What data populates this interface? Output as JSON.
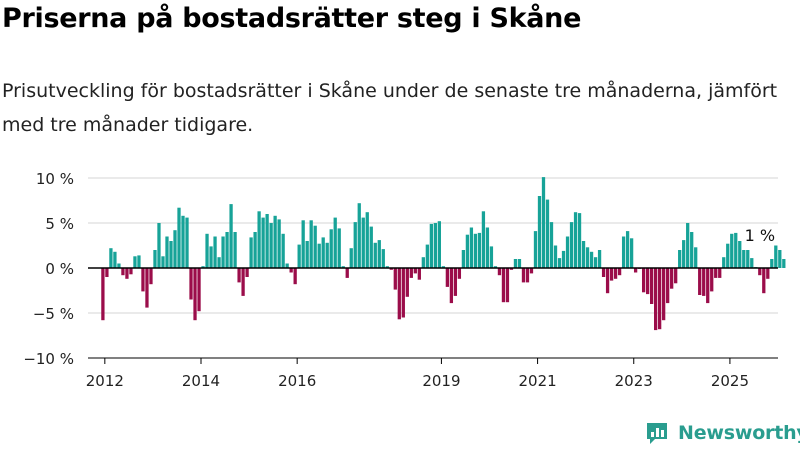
{
  "title": "Priserna på bostadsrätter steg i Skåne",
  "subtitle": "Prisutveckling för bostadsrätter i Skåne under de senaste tre månaderna, jämfört med tre månader tidigare.",
  "brand": {
    "name": "Newsworthy",
    "color": "#2a9d8f",
    "icon": "newsworthy-chart-icon"
  },
  "colors": {
    "positive": "#17a398",
    "negative": "#9b0d4a",
    "grid": "#d6d6d6",
    "axis": "#000000",
    "text": "#222222"
  },
  "chart_data": {
    "type": "bar",
    "unit": "%",
    "ylim": [
      -10,
      10
    ],
    "yticks": [
      10,
      5,
      0,
      -5,
      -10
    ],
    "ytick_labels": [
      "10 %",
      "5 %",
      "0 %",
      "−5 %",
      "−10 %"
    ],
    "grid": true,
    "xlim": [
      2011.65,
      2026.0
    ],
    "xticks": [
      2012,
      2014,
      2016,
      2019,
      2021,
      2023,
      2025
    ],
    "xtick_labels": [
      "2012",
      "2014",
      "2016",
      "2019",
      "2021",
      "2023",
      "2025"
    ],
    "annotation": {
      "text": "1 %",
      "x": 2025.58,
      "y": 1
    },
    "x_start": 2011.96,
    "x_step": 0.0833,
    "values": [
      -5.8,
      -1.0,
      2.2,
      1.8,
      0.5,
      -0.8,
      -1.2,
      -0.7,
      1.3,
      1.4,
      -2.6,
      -4.4,
      -1.8,
      2.0,
      5.0,
      1.3,
      3.5,
      3.0,
      4.2,
      6.7,
      5.8,
      5.6,
      -3.5,
      -5.8,
      -4.8,
      0.2,
      3.8,
      2.4,
      3.5,
      1.2,
      3.5,
      4.0,
      7.1,
      4.0,
      -1.6,
      -3.1,
      -1.0,
      3.4,
      4.0,
      6.3,
      5.6,
      6.0,
      5.0,
      5.8,
      5.4,
      3.8,
      0.5,
      -0.5,
      -1.8,
      2.6,
      5.3,
      3.0,
      5.3,
      4.7,
      2.7,
      3.4,
      2.8,
      4.3,
      5.6,
      4.4,
      0.2,
      -1.1,
      2.2,
      5.1,
      7.2,
      5.6,
      6.2,
      4.6,
      2.8,
      3.1,
      2.1,
      0.2,
      -0.2,
      -2.4,
      -5.7,
      -5.5,
      -3.2,
      -1.1,
      -0.6,
      -1.3,
      1.2,
      2.6,
      4.9,
      5.0,
      5.2,
      0.2,
      -2.1,
      -3.9,
      -3.1,
      -1.2,
      2.0,
      3.7,
      4.5,
      3.8,
      3.9,
      6.3,
      4.5,
      2.4,
      0.2,
      -0.8,
      -3.8,
      -3.8,
      -0.2,
      1.0,
      1.0,
      -1.6,
      -1.6,
      -0.6,
      4.1,
      8.0,
      10.1,
      7.6,
      5.1,
      2.5,
      1.1,
      1.9,
      3.5,
      5.1,
      6.2,
      6.1,
      3.0,
      2.3,
      1.8,
      1.2,
      2.0,
      -1.0,
      -2.8,
      -1.4,
      -1.2,
      -0.8,
      3.5,
      4.1,
      3.3,
      -0.5,
      -0.1,
      -2.7,
      -2.9,
      -4.0,
      -6.9,
      -6.8,
      -5.8,
      -3.9,
      -2.3,
      -1.7,
      2.0,
      3.1,
      5.0,
      4.0,
      2.3,
      -3.0,
      -3.1,
      -3.9,
      -2.6,
      -1.1,
      -1.1,
      1.2,
      2.7,
      3.8,
      3.9,
      3.0,
      2.0,
      2.0,
      1.1,
      0.1,
      -0.8,
      -2.8,
      -1.2,
      1.0,
      2.5,
      2.0,
      1.0
    ]
  }
}
